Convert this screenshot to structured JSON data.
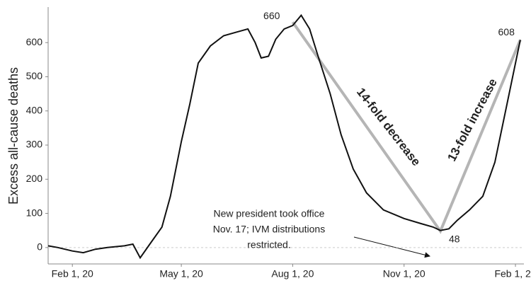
{
  "chart_data": {
    "type": "line",
    "y_label": "Excess all-cause deaths",
    "x": [
      "2020-01-12",
      "2020-01-20",
      "2020-02-01",
      "2020-02-10",
      "2020-02-20",
      "2020-03-01",
      "2020-03-15",
      "2020-03-22",
      "2020-03-28",
      "2020-04-05",
      "2020-04-15",
      "2020-04-22",
      "2020-05-01",
      "2020-05-08",
      "2020-05-15",
      "2020-05-25",
      "2020-06-05",
      "2020-06-15",
      "2020-06-25",
      "2020-07-01",
      "2020-07-06",
      "2020-07-12",
      "2020-07-18",
      "2020-07-25",
      "2020-08-01",
      "2020-08-08",
      "2020-08-15",
      "2020-08-22",
      "2020-09-01",
      "2020-09-10",
      "2020-09-20",
      "2020-10-01",
      "2020-10-15",
      "2020-11-01",
      "2020-11-15",
      "2020-11-25",
      "2020-12-01",
      "2020-12-08",
      "2020-12-15",
      "2020-12-25",
      "2021-01-05",
      "2021-01-15",
      "2021-01-25",
      "2021-02-05"
    ],
    "series": [
      {
        "name": "Excess deaths",
        "color": "#111111",
        "values": [
          5,
          0,
          -10,
          -15,
          -5,
          0,
          5,
          10,
          -30,
          10,
          60,
          150,
          310,
          420,
          540,
          590,
          620,
          630,
          640,
          600,
          555,
          560,
          610,
          640,
          650,
          680,
          640,
          560,
          450,
          330,
          230,
          160,
          110,
          85,
          70,
          60,
          50,
          55,
          80,
          110,
          150,
          250,
          420,
          608
        ]
      }
    ],
    "xlim": [
      "2020-01-12",
      "2021-02-08"
    ],
    "xticks": [
      {
        "value": "2020-02-01",
        "label": "Feb 1, 20"
      },
      {
        "value": "2020-05-01",
        "label": "May 1, 20"
      },
      {
        "value": "2020-08-01",
        "label": "Aug 1, 20"
      },
      {
        "value": "2020-11-01",
        "label": "Nov 1, 20"
      },
      {
        "value": "2021-02-01",
        "label": "Feb 1, 21"
      }
    ],
    "ylim": [
      -48,
      704
    ],
    "yticks": [
      0,
      100,
      200,
      300,
      400,
      500,
      600
    ],
    "trend": {
      "color": "#b5b5b5",
      "x": [
        "2020-08-01",
        "2020-12-01",
        "2021-02-05"
      ],
      "values": [
        660,
        48,
        608
      ]
    },
    "annotations": {
      "decrease": "14-fold decrease",
      "increase": "13-fold increase",
      "note": [
        "New president took office",
        "Nov. 17; IVM distributions",
        "restricted."
      ]
    }
  }
}
